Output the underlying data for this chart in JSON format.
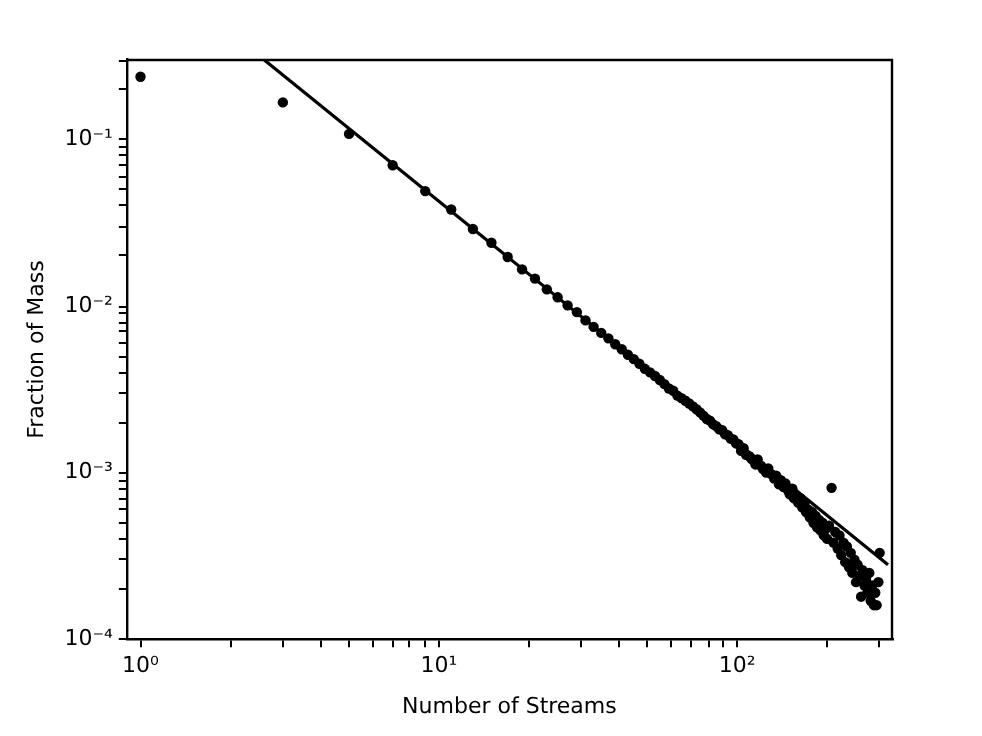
{
  "chart_data": {
    "type": "scatter",
    "xlabel": "Number of Streams",
    "ylabel": "Fraction of Mass",
    "log": "xy",
    "grid": false,
    "legend": false,
    "marker": "circle",
    "xlim": [
      0.9,
      330
    ],
    "ylim": [
      0.0001,
      0.3
    ],
    "xticks": [
      {
        "value": 1,
        "label": "10⁰"
      },
      {
        "value": 2,
        "label": null
      },
      {
        "value": 3,
        "label": null
      },
      {
        "value": 4,
        "label": null
      },
      {
        "value": 5,
        "label": null
      },
      {
        "value": 6,
        "label": null
      },
      {
        "value": 7,
        "label": null
      },
      {
        "value": 8,
        "label": null
      },
      {
        "value": 9,
        "label": null
      },
      {
        "value": 10,
        "label": "10¹"
      },
      {
        "value": 20,
        "label": null
      },
      {
        "value": 30,
        "label": null
      },
      {
        "value": 40,
        "label": null
      },
      {
        "value": 50,
        "label": null
      },
      {
        "value": 60,
        "label": null
      },
      {
        "value": 70,
        "label": null
      },
      {
        "value": 80,
        "label": null
      },
      {
        "value": 90,
        "label": null
      },
      {
        "value": 100,
        "label": "10²"
      },
      {
        "value": 200,
        "label": null
      },
      {
        "value": 300,
        "label": null
      }
    ],
    "yticks": [
      {
        "value": 0.0001,
        "label": "10⁻⁴"
      },
      {
        "value": 0.0002,
        "label": null
      },
      {
        "value": 0.0003,
        "label": null
      },
      {
        "value": 0.0004,
        "label": null
      },
      {
        "value": 0.0005,
        "label": null
      },
      {
        "value": 0.0006,
        "label": null
      },
      {
        "value": 0.0007,
        "label": null
      },
      {
        "value": 0.0008,
        "label": null
      },
      {
        "value": 0.0009,
        "label": null
      },
      {
        "value": 0.001,
        "label": "10⁻³"
      },
      {
        "value": 0.002,
        "label": null
      },
      {
        "value": 0.003,
        "label": null
      },
      {
        "value": 0.004,
        "label": null
      },
      {
        "value": 0.005,
        "label": null
      },
      {
        "value": 0.006,
        "label": null
      },
      {
        "value": 0.007,
        "label": null
      },
      {
        "value": 0.008,
        "label": null
      },
      {
        "value": 0.009,
        "label": null
      },
      {
        "value": 0.01,
        "label": "10⁻²"
      },
      {
        "value": 0.02,
        "label": null
      },
      {
        "value": 0.03,
        "label": null
      },
      {
        "value": 0.04,
        "label": null
      },
      {
        "value": 0.05,
        "label": null
      },
      {
        "value": 0.06,
        "label": null
      },
      {
        "value": 0.07,
        "label": null
      },
      {
        "value": 0.08,
        "label": null
      },
      {
        "value": 0.09,
        "label": null
      },
      {
        "value": 0.1,
        "label": "10⁻¹"
      },
      {
        "value": 0.2,
        "label": null
      },
      {
        "value": 0.3,
        "label": null
      }
    ],
    "series": [
      {
        "color": "#000000",
        "x": [
          1,
          3,
          5,
          7,
          9,
          11,
          13,
          15,
          17,
          19,
          21,
          23,
          25,
          27,
          29,
          31,
          33,
          35,
          37,
          39,
          41,
          43,
          45,
          47,
          49,
          51,
          53,
          55,
          57,
          59,
          61,
          63,
          65,
          67,
          69,
          71,
          73,
          75,
          77,
          79,
          81,
          83,
          85,
          87,
          89,
          91,
          93,
          95,
          97,
          99,
          101,
          103,
          105,
          107,
          110,
          112,
          115,
          117,
          120,
          122,
          125,
          127,
          130,
          133,
          135,
          138,
          140,
          143,
          145,
          148,
          150,
          153,
          155,
          158,
          160,
          163,
          165,
          168,
          170,
          173,
          175,
          178,
          180,
          183,
          185,
          188,
          190,
          193,
          195,
          198,
          200,
          203,
          207,
          210,
          213,
          217,
          220,
          223,
          227,
          230,
          233,
          237,
          240,
          243,
          247,
          250,
          253,
          257,
          260,
          263,
          267,
          270,
          273,
          277,
          280,
          283,
          287,
          290,
          293,
          297,
          300
        ],
        "values": [
          0.238,
          0.167,
          0.108,
          0.07,
          0.049,
          0.038,
          0.029,
          0.024,
          0.0197,
          0.0166,
          0.0146,
          0.0126,
          0.0113,
          0.0101,
          0.0092,
          0.0082,
          0.0075,
          0.0069,
          0.0064,
          0.0059,
          0.0055,
          0.0051,
          0.0048,
          0.0045,
          0.0042,
          0.004,
          0.0038,
          0.0036,
          0.0034,
          0.0032,
          0.0031,
          0.0029,
          0.0028,
          0.0027,
          0.0026,
          0.0025,
          0.0024,
          0.0023,
          0.0022,
          0.0021,
          0.00205,
          0.00195,
          0.0019,
          0.00182,
          0.0018,
          0.0017,
          0.00168,
          0.0016,
          0.00158,
          0.0015,
          0.00148,
          0.00135,
          0.0014,
          0.00128,
          0.00125,
          0.0012,
          0.00112,
          0.0012,
          0.0011,
          0.00105,
          0.001,
          0.00106,
          0.00098,
          0.00092,
          0.00096,
          0.00085,
          0.0009,
          0.00082,
          0.00086,
          0.00078,
          0.00074,
          0.0008,
          0.0007,
          0.00072,
          0.00066,
          0.0007,
          0.00062,
          0.00065,
          0.00058,
          0.0006,
          0.00054,
          0.00058,
          0.0005,
          0.00055,
          0.00047,
          0.00052,
          0.00045,
          0.0005,
          0.00042,
          0.00046,
          0.0004,
          0.00048,
          0.00081,
          0.00038,
          0.00044,
          0.00035,
          0.00042,
          0.00032,
          0.00038,
          0.00029,
          0.00036,
          0.00027,
          0.00033,
          0.00025,
          0.0003,
          0.00022,
          0.00028,
          0.00024,
          0.00018,
          0.00026,
          0.00021,
          0.00023,
          0.00019,
          0.00025,
          0.00017,
          0.00021,
          0.00016,
          0.00019,
          0.00016,
          0.00022,
          0.00033
        ]
      },
      {
        "type": "line",
        "color": "#000000",
        "line_style": "solid",
        "marker": "none",
        "x": [
          2.6,
          320
        ],
        "values": [
          0.3,
          0.00028
        ]
      }
    ]
  }
}
